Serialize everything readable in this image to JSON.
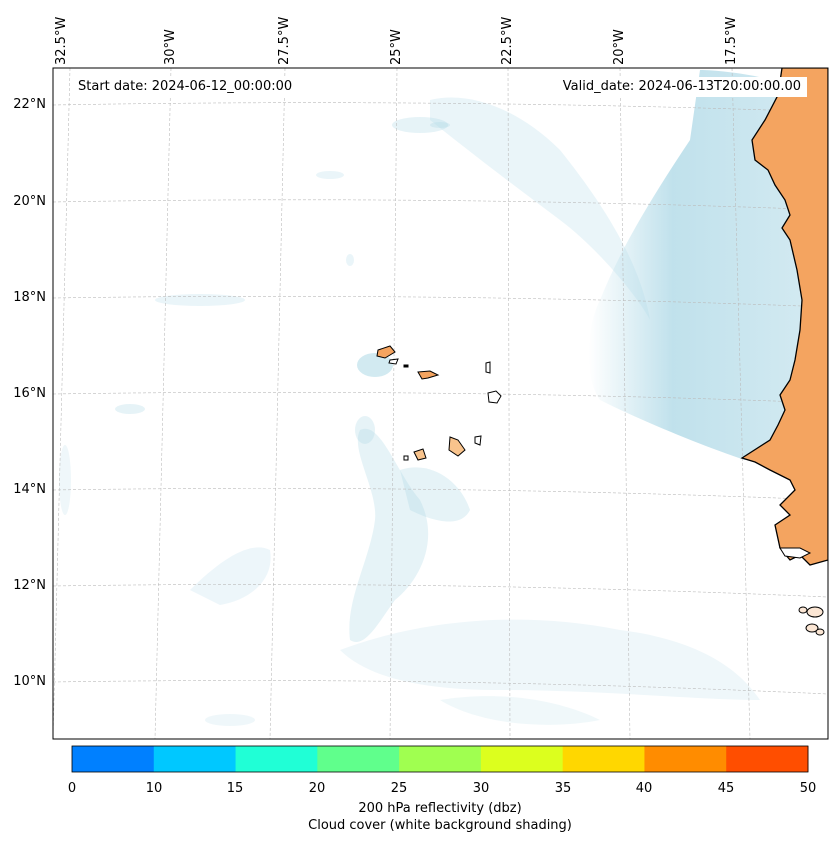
{
  "map": {
    "start_date": "Start date: 2024-06-12_00:00:00",
    "valid_date": "Valid_date: 2024-06-13T20:00:00.00",
    "lon_labels": [
      "32.5°W",
      "30°W",
      "27.5°W",
      "25°W",
      "22.5°W",
      "20°W",
      "17.5°W"
    ],
    "lat_labels": [
      "22°N",
      "20°N",
      "18°N",
      "16°N",
      "14°N",
      "12°N",
      "10°N"
    ],
    "colors": {
      "cloud": "#add8e6",
      "land": "#f4a460",
      "coast": "#000000",
      "grid": "#bbbbbb"
    }
  },
  "colorbar": {
    "ticks": [
      "0",
      "10",
      "15",
      "20",
      "25",
      "30",
      "35",
      "40",
      "45",
      "50"
    ],
    "colors": [
      "#0080ff",
      "#00c8ff",
      "#20ffd6",
      "#60ff8c",
      "#a0ff50",
      "#dcff1e",
      "#ffd700",
      "#ff8c00",
      "#ff4e00"
    ],
    "label": "200 hPa reflectivity (dbz)",
    "sublabel": "Cloud cover (white background shading)"
  }
}
